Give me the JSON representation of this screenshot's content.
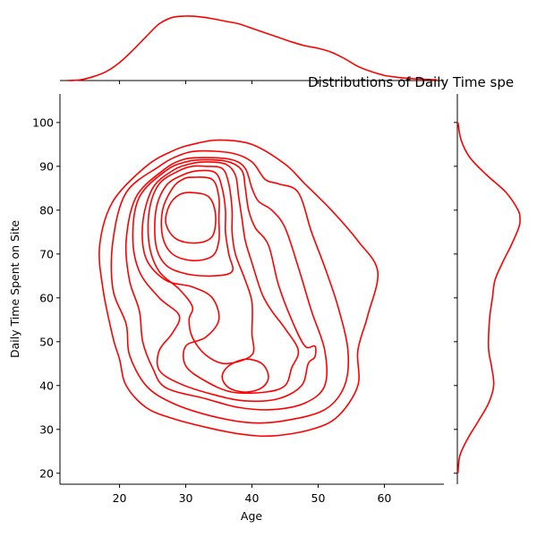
{
  "chart_data": {
    "type": "kde-joint",
    "title": "Distributions of Daily Time spe",
    "xlabel": "Age",
    "ylabel": "Daily Time Spent on Site",
    "color": "#ff0000",
    "xlim": [
      11,
      69
    ],
    "ylim": [
      17.5,
      106.5
    ],
    "xticks": [
      20,
      30,
      40,
      50,
      60
    ],
    "yticks": [
      20,
      30,
      40,
      50,
      60,
      70,
      80,
      90,
      100
    ],
    "marginal_x": {
      "x": [
        12,
        14,
        16,
        18,
        20,
        22,
        24,
        26,
        28,
        30,
        32,
        34,
        36,
        38,
        40,
        42,
        44,
        46,
        48,
        50,
        52,
        54,
        56,
        58,
        60,
        62,
        64,
        66,
        68
      ],
      "density": [
        0.0,
        0.01,
        0.06,
        0.14,
        0.28,
        0.47,
        0.68,
        0.88,
        0.98,
        1.0,
        0.99,
        0.96,
        0.92,
        0.88,
        0.81,
        0.74,
        0.67,
        0.6,
        0.54,
        0.5,
        0.44,
        0.34,
        0.22,
        0.14,
        0.08,
        0.05,
        0.03,
        0.02,
        0.01
      ]
    },
    "marginal_y": {
      "y": [
        20,
        24,
        28,
        32,
        36,
        40,
        44,
        48,
        52,
        56,
        60,
        64,
        68,
        72,
        76,
        78,
        80,
        84,
        88,
        92,
        96,
        100
      ],
      "density": [
        0.01,
        0.04,
        0.17,
        0.34,
        0.5,
        0.58,
        0.55,
        0.5,
        0.5,
        0.52,
        0.56,
        0.6,
        0.72,
        0.86,
        0.98,
        1.0,
        0.97,
        0.78,
        0.47,
        0.2,
        0.06,
        0.01
      ]
    },
    "contours": [
      {
        "level": 1,
        "points": [
          [
            31,
            95
          ],
          [
            35,
            96
          ],
          [
            40,
            95
          ],
          [
            45,
            90.5
          ],
          [
            48,
            86
          ],
          [
            52,
            80
          ],
          [
            56,
            73
          ],
          [
            59,
            66
          ],
          [
            57.5,
            56
          ],
          [
            56,
            48
          ],
          [
            56,
            40
          ],
          [
            53,
            33
          ],
          [
            49,
            30
          ],
          [
            43,
            28.5
          ],
          [
            38,
            29
          ],
          [
            33,
            30.5
          ],
          [
            28,
            32.5
          ],
          [
            24,
            35
          ],
          [
            21,
            40
          ],
          [
            20,
            46
          ],
          [
            19,
            51
          ],
          [
            17.5,
            62
          ],
          [
            17,
            72
          ],
          [
            19,
            82
          ],
          [
            24,
            90
          ],
          [
            28,
            93.5
          ]
        ]
      },
      {
        "level": 2,
        "points": [
          [
            32,
            93.5
          ],
          [
            37,
            93
          ],
          [
            40,
            91
          ],
          [
            42,
            87
          ],
          [
            44,
            86
          ],
          [
            47,
            84
          ],
          [
            49,
            75
          ],
          [
            51,
            67
          ],
          [
            53,
            58
          ],
          [
            54.5,
            48
          ],
          [
            54,
            40
          ],
          [
            51,
            34.5
          ],
          [
            45,
            32
          ],
          [
            40,
            31.5
          ],
          [
            34,
            33
          ],
          [
            28,
            36
          ],
          [
            24,
            40
          ],
          [
            21.5,
            47
          ],
          [
            21,
            54
          ],
          [
            19,
            62
          ],
          [
            19,
            73
          ],
          [
            21,
            84
          ],
          [
            26,
            90
          ],
          [
            29,
            92.5
          ]
        ]
      },
      {
        "level": 3,
        "points": [
          [
            33,
            92
          ],
          [
            37,
            91.5
          ],
          [
            39,
            89.5
          ],
          [
            40,
            85
          ],
          [
            41,
            82
          ],
          [
            43,
            80
          ],
          [
            45,
            76
          ],
          [
            47,
            67
          ],
          [
            49,
            57
          ],
          [
            51,
            48
          ],
          [
            51,
            40
          ],
          [
            48,
            36
          ],
          [
            43,
            34.5
          ],
          [
            38,
            35
          ],
          [
            33,
            37
          ],
          [
            27,
            39.5
          ],
          [
            25,
            44
          ],
          [
            23.5,
            50
          ],
          [
            23,
            57
          ],
          [
            21.5,
            64
          ],
          [
            21,
            73
          ],
          [
            22.5,
            83
          ],
          [
            26.5,
            89
          ],
          [
            29.5,
            91.5
          ]
        ]
      },
      {
        "level": 4,
        "points": [
          [
            33,
            91.5
          ],
          [
            36.5,
            91
          ],
          [
            38.5,
            89
          ],
          [
            39,
            85
          ],
          [
            39.5,
            80
          ],
          [
            40.5,
            76
          ],
          [
            42.5,
            72
          ],
          [
            44,
            63
          ],
          [
            46,
            55
          ],
          [
            48,
            49
          ],
          [
            49.5,
            49
          ],
          [
            49.5,
            46.5
          ],
          [
            48.5,
            45
          ],
          [
            47.5,
            40
          ],
          [
            44,
            37
          ],
          [
            39,
            36.5
          ],
          [
            34,
            38
          ],
          [
            29,
            40.5
          ],
          [
            26,
            43.5
          ],
          [
            26,
            48
          ],
          [
            28,
            52
          ],
          [
            29,
            56
          ],
          [
            26,
            60
          ],
          [
            23,
            66
          ],
          [
            22,
            74
          ],
          [
            23,
            83
          ],
          [
            27,
            89
          ],
          [
            30,
            91
          ]
        ]
      },
      {
        "level": 5,
        "points": [
          [
            33,
            91
          ],
          [
            36,
            90.5
          ],
          [
            37.5,
            88
          ],
          [
            38,
            83
          ],
          [
            38.5,
            78
          ],
          [
            39,
            73
          ],
          [
            40,
            68
          ],
          [
            41.5,
            61
          ],
          [
            43,
            57
          ],
          [
            45,
            53
          ],
          [
            47,
            48
          ],
          [
            46,
            44
          ],
          [
            45,
            40
          ],
          [
            42,
            38.5
          ],
          [
            37,
            38.5
          ],
          [
            33,
            41
          ],
          [
            30,
            44.5
          ],
          [
            30,
            49
          ],
          [
            33,
            51
          ],
          [
            35,
            55
          ],
          [
            34,
            60
          ],
          [
            31,
            62.5
          ],
          [
            27,
            64
          ],
          [
            24,
            69
          ],
          [
            23.5,
            77
          ],
          [
            25,
            85
          ],
          [
            28,
            89
          ],
          [
            30.5,
            90.5
          ]
        ]
      },
      {
        "level": 6,
        "points": [
          [
            33,
            90
          ],
          [
            35.5,
            89.5
          ],
          [
            36.5,
            86
          ],
          [
            37,
            80
          ],
          [
            37,
            75
          ],
          [
            37.5,
            70
          ],
          [
            39,
            64
          ],
          [
            40,
            59
          ],
          [
            40,
            52
          ],
          [
            40,
            47
          ],
          [
            36,
            45
          ],
          [
            33,
            47
          ],
          [
            31,
            51
          ],
          [
            30.5,
            55
          ],
          [
            31,
            58
          ],
          [
            29,
            62
          ],
          [
            26,
            66
          ],
          [
            24.5,
            72
          ],
          [
            24.5,
            80
          ],
          [
            26,
            86
          ],
          [
            29,
            89
          ],
          [
            31,
            90
          ]
        ]
      },
      {
        "level": 7,
        "points": [
          [
            32,
            89
          ],
          [
            34.5,
            88.5
          ],
          [
            35.5,
            85
          ],
          [
            36,
            80
          ],
          [
            36,
            75
          ],
          [
            36.5,
            70
          ],
          [
            37,
            66
          ],
          [
            34,
            65
          ],
          [
            30,
            65.5
          ],
          [
            27,
            67.5
          ],
          [
            25.5,
            72
          ],
          [
            25.5,
            80
          ],
          [
            27,
            85.5
          ],
          [
            29.5,
            88
          ]
        ]
      },
      {
        "level": 8,
        "points": [
          [
            31,
            87.5
          ],
          [
            34,
            87
          ],
          [
            35,
            83
          ],
          [
            35,
            78
          ],
          [
            35,
            73
          ],
          [
            34,
            69.5
          ],
          [
            31,
            68.5
          ],
          [
            28,
            70
          ],
          [
            26.5,
            74
          ],
          [
            26.5,
            80
          ],
          [
            28,
            85
          ],
          [
            29.5,
            87
          ]
        ]
      },
      {
        "level": 9,
        "points": [
          [
            31,
            84
          ],
          [
            33.5,
            83
          ],
          [
            34.5,
            79
          ],
          [
            34,
            74
          ],
          [
            31.5,
            72.5
          ],
          [
            28.5,
            73.5
          ],
          [
            27,
            77
          ],
          [
            27.5,
            81
          ],
          [
            29,
            83.5
          ]
        ]
      },
      {
        "level": 10,
        "points": [
          [
            39,
            46
          ],
          [
            41.5,
            45
          ],
          [
            42.5,
            42
          ],
          [
            41.5,
            39.5
          ],
          [
            39,
            38.5
          ],
          [
            36.5,
            39.5
          ],
          [
            35.5,
            42
          ],
          [
            36.5,
            44.5
          ]
        ]
      }
    ]
  }
}
